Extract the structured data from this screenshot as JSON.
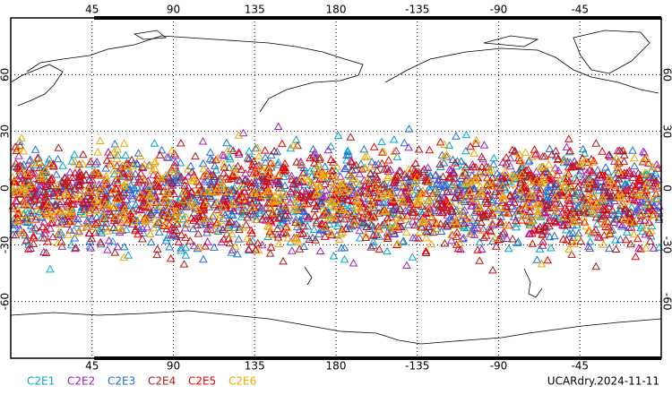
{
  "chart_data": {
    "type": "map",
    "xlim": [
      0,
      360
    ],
    "xticks": [
      45,
      90,
      135,
      180,
      {
        "value": 225,
        "label": "-135"
      },
      {
        "value": 270,
        "label": "-90"
      },
      {
        "value": 315,
        "label": "-45"
      }
    ],
    "ylim": [
      -90,
      90
    ],
    "yticks": [
      -60,
      -30,
      0,
      30,
      60
    ],
    "grid": true,
    "series": [
      {
        "name": "C2E1",
        "color": "#00a8c8"
      },
      {
        "name": "C2E2",
        "color": "#a020c0"
      },
      {
        "name": "C2E3",
        "color": "#1f6fd8"
      },
      {
        "name": "C2E4",
        "color": "#b01818"
      },
      {
        "name": "C2E5",
        "color": "#e80000"
      },
      {
        "name": "C2E6",
        "color": "#f0a800"
      }
    ],
    "footer": "UCARdry.2024-11-11"
  }
}
